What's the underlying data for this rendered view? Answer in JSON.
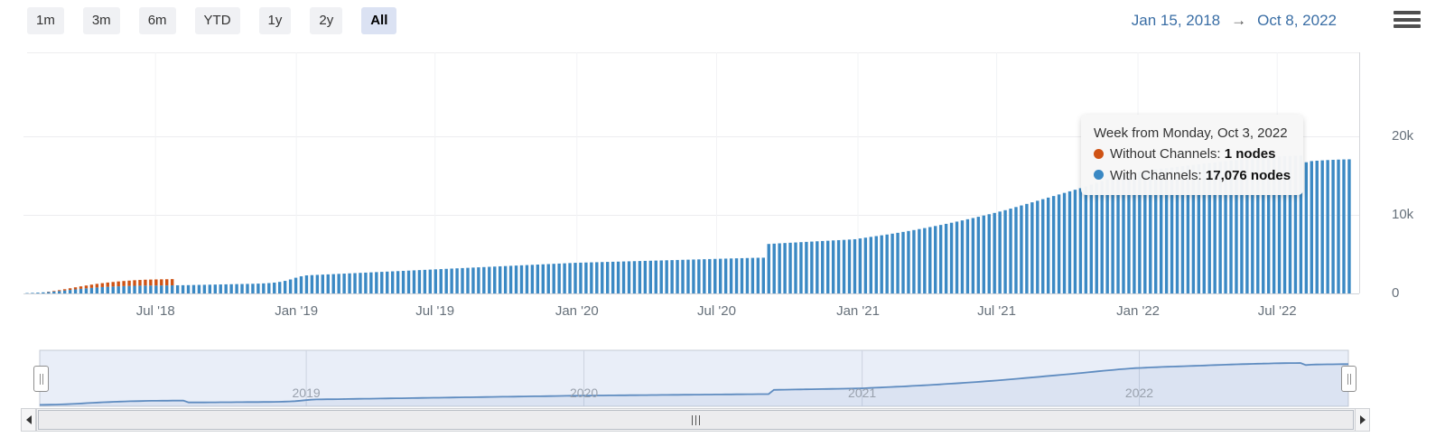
{
  "range_selector": {
    "buttons": [
      "1m",
      "3m",
      "6m",
      "YTD",
      "1y",
      "2y",
      "All"
    ],
    "selected": "All"
  },
  "date_range": {
    "from": "Jan 15, 2018",
    "arrow": "→",
    "to": "Oct 8, 2022"
  },
  "tooltip": {
    "title": "Week from Monday, Oct 3, 2022",
    "series": [
      {
        "label": "Without Channels:",
        "value": "1 nodes",
        "color": "#cf5315"
      },
      {
        "label": "With Channels:",
        "value": "17,076 nodes",
        "color": "#3b89c4"
      }
    ]
  },
  "chart_data": {
    "type": "bar",
    "stacked": true,
    "interval": "week",
    "x_start": "2018-01-15",
    "x_end": "2022-10-08",
    "x_tick_labels": [
      "Jul '18",
      "Jan '19",
      "Jul '19",
      "Jan '20",
      "Jul '20",
      "Jan '21",
      "Jul '21",
      "Jan '22",
      "Jul '22"
    ],
    "y_ticks": [
      0,
      10000,
      20000
    ],
    "y_tick_labels": [
      "0",
      "10k",
      "20k"
    ],
    "ylim": [
      0,
      30000
    ],
    "legend": "none",
    "navigator_year_labels": [
      "2019",
      "2020",
      "2021",
      "2022"
    ],
    "series": [
      {
        "name": "With Channels",
        "color": "#3b89c4",
        "values": [
          50,
          70,
          100,
          140,
          190,
          250,
          310,
          380,
          450,
          520,
          590,
          650,
          710,
          760,
          810,
          850,
          880,
          910,
          935,
          955,
          975,
          990,
          1000,
          1005,
          1010,
          1015,
          1020,
          1030,
          1040,
          1050,
          1060,
          1075,
          1090,
          1100,
          1115,
          1130,
          1145,
          1160,
          1175,
          1190,
          1200,
          1215,
          1230,
          1250,
          1280,
          1320,
          1380,
          1470,
          1600,
          1780,
          2000,
          2180,
          2300,
          2332,
          2364,
          2396,
          2428,
          2460,
          2492,
          2524,
          2556,
          2588,
          2620,
          2652,
          2684,
          2716,
          2748,
          2780,
          2812,
          2844,
          2876,
          2908,
          2940,
          2972,
          3004,
          3036,
          3068,
          3100,
          3132,
          3164,
          3196,
          3228,
          3260,
          3292,
          3324,
          3356,
          3388,
          3420,
          3452,
          3484,
          3516,
          3548,
          3580,
          3612,
          3644,
          3676,
          3708,
          3740,
          3772,
          3804,
          3836,
          3868,
          3900,
          3919,
          3938,
          3957,
          3976,
          3995,
          4014,
          4033,
          4052,
          4071,
          4090,
          4109,
          4128,
          4147,
          4166,
          4185,
          4204,
          4223,
          4242,
          4261,
          4280,
          4299,
          4318,
          4337,
          4356,
          4375,
          4394,
          4413,
          4432,
          4451,
          4470,
          4489,
          4508,
          4527,
          4540,
          4550,
          6300,
          6340,
          6380,
          6420,
          6455,
          6490,
          6530,
          6565,
          6600,
          6640,
          6675,
          6710,
          6750,
          6785,
          6820,
          6860,
          6900,
          7000,
          7100,
          7200,
          7300,
          7400,
          7500,
          7610,
          7720,
          7835,
          7950,
          8070,
          8195,
          8320,
          8450,
          8585,
          8720,
          8860,
          9000,
          9145,
          9295,
          9445,
          9600,
          9760,
          9920,
          10085,
          10250,
          10425,
          10600,
          10800,
          11000,
          11200,
          11400,
          11600,
          11800,
          12000,
          12200,
          12400,
          12600,
          12800,
          13000,
          13200,
          13400,
          13625,
          13850,
          14075,
          14300,
          14500,
          14700,
          14900,
          15070,
          15240,
          15400,
          15500,
          15600,
          15700,
          15800,
          15880,
          15960,
          16040,
          16120,
          16200,
          16280,
          16360,
          16440,
          16520,
          16600,
          16680,
          16760,
          16840,
          16920,
          17000,
          17060,
          17120,
          17180,
          17240,
          17300,
          17350,
          17400,
          17440,
          17480,
          17510,
          17540,
          17560,
          16700,
          16850,
          16900,
          16940,
          16980,
          17010,
          17040,
          17060,
          17076
        ]
      },
      {
        "name": "Without Channels",
        "color": "#cf5315",
        "values": [
          0,
          0,
          0,
          0,
          40,
          70,
          110,
          160,
          210,
          260,
          310,
          360,
          410,
          460,
          500,
          540,
          580,
          620,
          650,
          680,
          710,
          730,
          750,
          765,
          775,
          785,
          790,
          795,
          0,
          0,
          0,
          0,
          0,
          0,
          0,
          0,
          0,
          0,
          0,
          0,
          0,
          0,
          0,
          0,
          0,
          0,
          0,
          0,
          0,
          0,
          0,
          0,
          0,
          0,
          0,
          0,
          0,
          0,
          0,
          0,
          0,
          0,
          0,
          0,
          0,
          0,
          0,
          0,
          0,
          0,
          0,
          0,
          0,
          0,
          0,
          0,
          0,
          0,
          0,
          0,
          0,
          0,
          0,
          0,
          0,
          0,
          0,
          0,
          0,
          0,
          0,
          0,
          0,
          0,
          0,
          0,
          0,
          0,
          0,
          0,
          0,
          0,
          0,
          0,
          0,
          0,
          0,
          0,
          0,
          0,
          0,
          0,
          0,
          0,
          0,
          0,
          0,
          0,
          0,
          0,
          0,
          0,
          0,
          0,
          0,
          0,
          0,
          0,
          0,
          0,
          0,
          0,
          0,
          0,
          0,
          0,
          0,
          0,
          0,
          0,
          0,
          0,
          0,
          0,
          0,
          0,
          0,
          0,
          0,
          0,
          0,
          0,
          0,
          0,
          0,
          0,
          0,
          0,
          0,
          0,
          0,
          0,
          0,
          0,
          0,
          0,
          0,
          0,
          0,
          0,
          0,
          0,
          0,
          0,
          0,
          0,
          0,
          0,
          0,
          0,
          0,
          0,
          0,
          0,
          0,
          0,
          0,
          0,
          0,
          0,
          0,
          0,
          0,
          0,
          0,
          0,
          0,
          0,
          0,
          0,
          0,
          0,
          0,
          0,
          0,
          0,
          0,
          0,
          0,
          0,
          0,
          0,
          0,
          0,
          0,
          0,
          0,
          0,
          0,
          0,
          0,
          0,
          0,
          0,
          0,
          0,
          0,
          0,
          0,
          0,
          0,
          0,
          0,
          0,
          0,
          0,
          1
        ]
      }
    ]
  }
}
